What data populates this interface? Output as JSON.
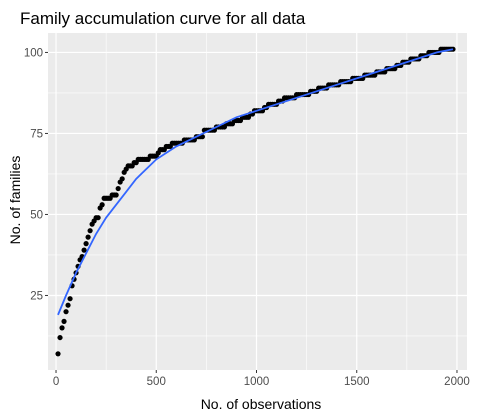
{
  "chart_data": {
    "type": "scatter",
    "title": "Family accumulation curve for all data",
    "xlabel": "No. of observations",
    "ylabel": "No. of families",
    "xlim": [
      -40,
      2050
    ],
    "ylim": [
      2,
      106
    ],
    "xticks": [
      0,
      500,
      1000,
      1500,
      2000
    ],
    "yticks": [
      25,
      50,
      75,
      100
    ],
    "grid": true,
    "panel_background": "#ebebeb",
    "grid_color": "#ffffff",
    "point_color": "#000000",
    "smooth_color": "#3366ff",
    "series": [
      {
        "kind": "points",
        "x": [
          10,
          20,
          30,
          40,
          50,
          60,
          70,
          80,
          90,
          100,
          110,
          120,
          130,
          140,
          150,
          160,
          170,
          180,
          190,
          200,
          210,
          220,
          230,
          240,
          250,
          260,
          270,
          280,
          290,
          300,
          310,
          320,
          330,
          340,
          350,
          360,
          370,
          380,
          390,
          400,
          410,
          420,
          430,
          440,
          450,
          460,
          470,
          480,
          490,
          500,
          510,
          520,
          530,
          540,
          550,
          560,
          570,
          580,
          590,
          600,
          610,
          620,
          630,
          640,
          650,
          660,
          670,
          680,
          690,
          700,
          710,
          720,
          730,
          740,
          750,
          760,
          770,
          780,
          790,
          800,
          810,
          820,
          830,
          840,
          850,
          860,
          870,
          880,
          890,
          900,
          910,
          920,
          930,
          940,
          950,
          960,
          970,
          980,
          990,
          1000,
          1010,
          1020,
          1030,
          1040,
          1050,
          1060,
          1070,
          1080,
          1090,
          1100,
          1110,
          1120,
          1130,
          1140,
          1150,
          1160,
          1170,
          1180,
          1190,
          1200,
          1210,
          1220,
          1230,
          1240,
          1250,
          1260,
          1270,
          1280,
          1290,
          1300,
          1310,
          1320,
          1330,
          1340,
          1350,
          1360,
          1370,
          1380,
          1390,
          1400,
          1410,
          1420,
          1430,
          1440,
          1450,
          1460,
          1470,
          1480,
          1490,
          1500,
          1510,
          1520,
          1530,
          1540,
          1550,
          1560,
          1570,
          1580,
          1590,
          1600,
          1610,
          1620,
          1630,
          1640,
          1650,
          1660,
          1670,
          1680,
          1690,
          1700,
          1710,
          1720,
          1730,
          1740,
          1750,
          1760,
          1770,
          1780,
          1790,
          1800,
          1810,
          1820,
          1830,
          1840,
          1850,
          1860,
          1870,
          1880,
          1890,
          1900,
          1910,
          1920,
          1930,
          1940,
          1950,
          1960,
          1970,
          1980
        ],
        "y": [
          7,
          12,
          15,
          17,
          20,
          22,
          24,
          28,
          30,
          32,
          34,
          36,
          37,
          39,
          41,
          43,
          45,
          47,
          48,
          49,
          49,
          52,
          53,
          55,
          55,
          55,
          55,
          56,
          56,
          56,
          58,
          60,
          61,
          63,
          64,
          65,
          65,
          65,
          66,
          66,
          67,
          67,
          67,
          67,
          67,
          67,
          68,
          68,
          68,
          68,
          69,
          70,
          70,
          70,
          71,
          71,
          71,
          72,
          72,
          72,
          72,
          72,
          72,
          73,
          73,
          73,
          73,
          73,
          73,
          74,
          74,
          74,
          74,
          76,
          76,
          76,
          76,
          76,
          76,
          77,
          77,
          77,
          77,
          77,
          78,
          78,
          78,
          78,
          79,
          79,
          79,
          79,
          80,
          80,
          80,
          80,
          81,
          81,
          82,
          82,
          82,
          82,
          82,
          83,
          83,
          84,
          84,
          84,
          84,
          84,
          85,
          85,
          85,
          86,
          86,
          86,
          86,
          86,
          86,
          87,
          87,
          87,
          87,
          87,
          87,
          87,
          88,
          88,
          88,
          88,
          89,
          89,
          89,
          89,
          89,
          90,
          90,
          90,
          90,
          90,
          90,
          91,
          91,
          91,
          91,
          91,
          91,
          92,
          92,
          92,
          92,
          92,
          92,
          93,
          93,
          93,
          93,
          93,
          93,
          94,
          94,
          94,
          94,
          94,
          95,
          95,
          95,
          95,
          95,
          96,
          96,
          96,
          97,
          97,
          97,
          97,
          98,
          98,
          98,
          98,
          98,
          99,
          99,
          99,
          99,
          100,
          100,
          100,
          100,
          100,
          100,
          101,
          101,
          101,
          101,
          101,
          101,
          101
        ]
      },
      {
        "kind": "smooth",
        "x": [
          10,
          50,
          100,
          150,
          200,
          250,
          300,
          350,
          400,
          450,
          500,
          550,
          600,
          700,
          800,
          900,
          1000,
          1100,
          1200,
          1300,
          1400,
          1500,
          1600,
          1700,
          1800,
          1900,
          1980
        ],
        "y": [
          19,
          25,
          32,
          38,
          44,
          49,
          53,
          57,
          61,
          64,
          67,
          69,
          71,
          74,
          77,
          80,
          82,
          84,
          86,
          88,
          90,
          92,
          94,
          96,
          98,
          100,
          101
        ]
      }
    ]
  }
}
